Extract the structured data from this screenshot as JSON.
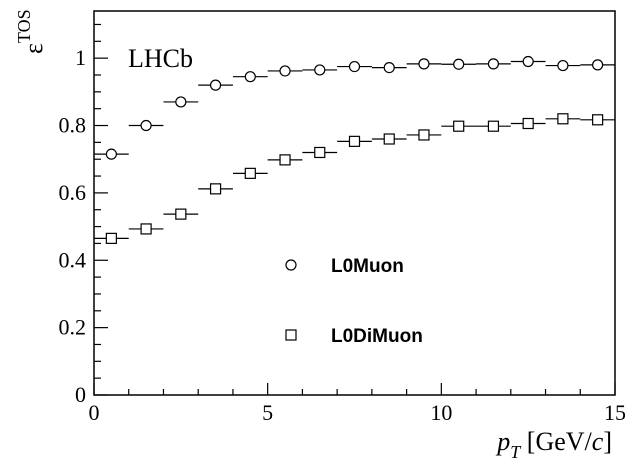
{
  "chart_data": {
    "type": "scatter",
    "title": "",
    "xlabel_main": "p",
    "xlabel_sub": "T",
    "xlabel_unit_pre": " [GeV/",
    "xlabel_unit_c": "c",
    "xlabel_unit_post": "]",
    "ylabel_main": "ε",
    "ylabel_sup": "TOS",
    "annotation": "LHCb",
    "xlim": [
      0,
      15
    ],
    "ylim": [
      0,
      1.14
    ],
    "x_ticks": [
      0,
      5,
      10,
      15
    ],
    "x_tick_labels": [
      "0",
      "5",
      "10",
      "15"
    ],
    "y_ticks": [
      0,
      0.2,
      0.4,
      0.6,
      0.8,
      1.0
    ],
    "y_tick_labels": [
      "0",
      "0.2",
      "0.4",
      "0.6",
      "0.8",
      "1"
    ],
    "grid": false,
    "legend_position": "center-right",
    "x": [
      0.5,
      1.5,
      2.5,
      3.5,
      4.5,
      5.5,
      6.5,
      7.5,
      8.5,
      9.5,
      10.5,
      11.5,
      12.5,
      13.5,
      14.5
    ],
    "series": [
      {
        "name": "L0Muon",
        "marker": "circle",
        "values": [
          0.715,
          0.8,
          0.87,
          0.92,
          0.945,
          0.962,
          0.965,
          0.975,
          0.972,
          0.983,
          0.982,
          0.983,
          0.99,
          0.978,
          0.98
        ]
      },
      {
        "name": "L0DiMuon",
        "marker": "square",
        "values": [
          0.465,
          0.493,
          0.537,
          0.612,
          0.658,
          0.698,
          0.72,
          0.753,
          0.76,
          0.772,
          0.798,
          0.798,
          0.806,
          0.82,
          0.817
        ]
      }
    ]
  }
}
